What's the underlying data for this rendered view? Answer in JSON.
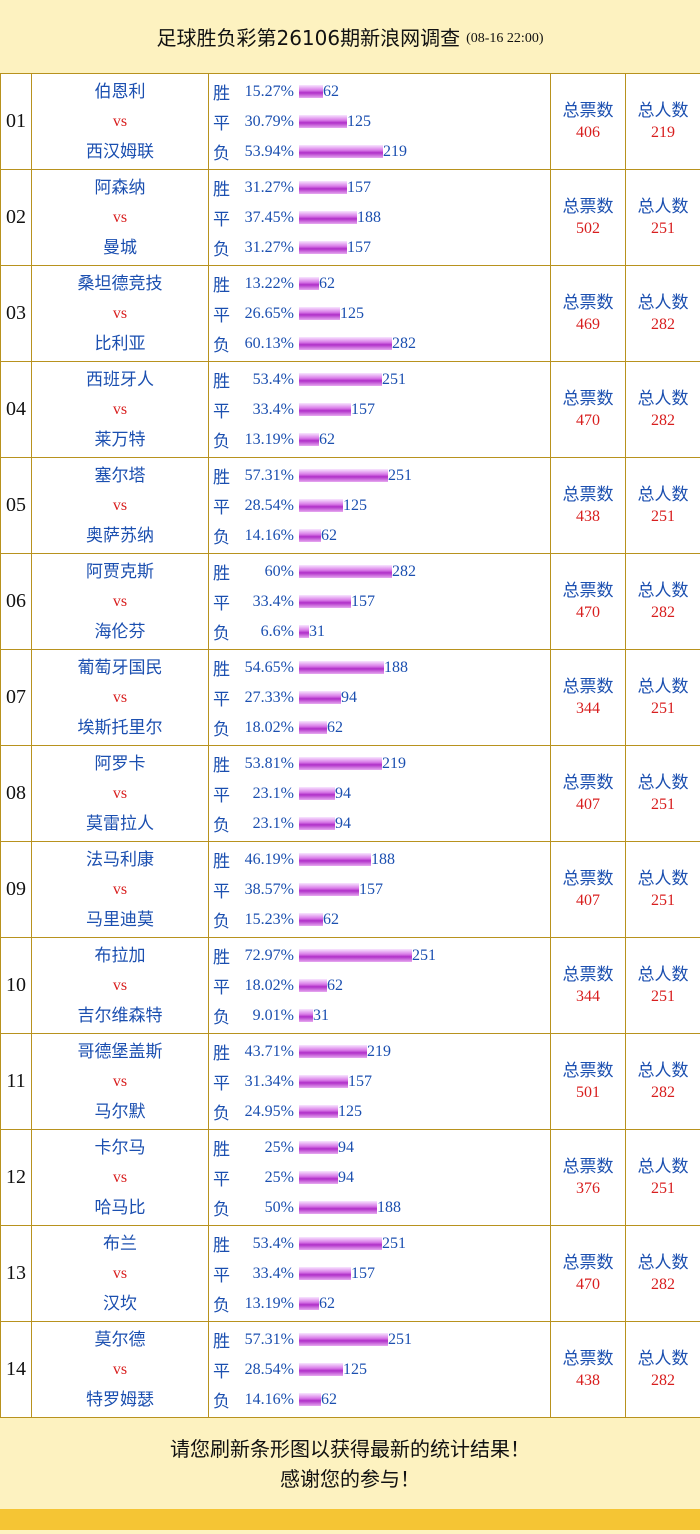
{
  "header": {
    "title": "足球胜负彩第26106期新浪网调查",
    "time": "(08-16 22:00)"
  },
  "labels": {
    "vs": "vs",
    "total_votes": "总票数",
    "total_people": "总人数"
  },
  "colors": {
    "team": "#1b4fb0",
    "vs": "#d81e1e",
    "border": "#b8921e",
    "background": "#fdf2c0",
    "bar": "#c45ad6"
  },
  "matches": [
    {
      "no": "01",
      "home": "伯恩利",
      "away": "西汉姆联",
      "options": [
        {
          "label": "胜",
          "pct": "15.27%",
          "count": "62",
          "pct_value": 15.27
        },
        {
          "label": "平",
          "pct": "30.79%",
          "count": "125",
          "pct_value": 30.79
        },
        {
          "label": "负",
          "pct": "53.94%",
          "count": "219",
          "pct_value": 53.94
        }
      ],
      "total_votes": "406",
      "total_people": "219"
    },
    {
      "no": "02",
      "home": "阿森纳",
      "away": "曼城",
      "options": [
        {
          "label": "胜",
          "pct": "31.27%",
          "count": "157",
          "pct_value": 31.27
        },
        {
          "label": "平",
          "pct": "37.45%",
          "count": "188",
          "pct_value": 37.45
        },
        {
          "label": "负",
          "pct": "31.27%",
          "count": "157",
          "pct_value": 31.27
        }
      ],
      "total_votes": "502",
      "total_people": "251"
    },
    {
      "no": "03",
      "home": "桑坦德竞技",
      "away": "比利亚",
      "options": [
        {
          "label": "胜",
          "pct": "13.22%",
          "count": "62",
          "pct_value": 13.22
        },
        {
          "label": "平",
          "pct": "26.65%",
          "count": "125",
          "pct_value": 26.65
        },
        {
          "label": "负",
          "pct": "60.13%",
          "count": "282",
          "pct_value": 60.13
        }
      ],
      "total_votes": "469",
      "total_people": "282"
    },
    {
      "no": "04",
      "home": "西班牙人",
      "away": "莱万特",
      "options": [
        {
          "label": "胜",
          "pct": "53.4%",
          "count": "251",
          "pct_value": 53.4
        },
        {
          "label": "平",
          "pct": "33.4%",
          "count": "157",
          "pct_value": 33.4
        },
        {
          "label": "负",
          "pct": "13.19%",
          "count": "62",
          "pct_value": 13.19
        }
      ],
      "total_votes": "470",
      "total_people": "282"
    },
    {
      "no": "05",
      "home": "塞尔塔",
      "away": "奥萨苏纳",
      "options": [
        {
          "label": "胜",
          "pct": "57.31%",
          "count": "251",
          "pct_value": 57.31
        },
        {
          "label": "平",
          "pct": "28.54%",
          "count": "125",
          "pct_value": 28.54
        },
        {
          "label": "负",
          "pct": "14.16%",
          "count": "62",
          "pct_value": 14.16
        }
      ],
      "total_votes": "438",
      "total_people": "251"
    },
    {
      "no": "06",
      "home": "阿贾克斯",
      "away": "海伦芬",
      "options": [
        {
          "label": "胜",
          "pct": "60%",
          "count": "282",
          "pct_value": 60
        },
        {
          "label": "平",
          "pct": "33.4%",
          "count": "157",
          "pct_value": 33.4
        },
        {
          "label": "负",
          "pct": "6.6%",
          "count": "31",
          "pct_value": 6.6
        }
      ],
      "total_votes": "470",
      "total_people": "282"
    },
    {
      "no": "07",
      "home": "葡萄牙国民",
      "away": "埃斯托里尔",
      "options": [
        {
          "label": "胜",
          "pct": "54.65%",
          "count": "188",
          "pct_value": 54.65
        },
        {
          "label": "平",
          "pct": "27.33%",
          "count": "94",
          "pct_value": 27.33
        },
        {
          "label": "负",
          "pct": "18.02%",
          "count": "62",
          "pct_value": 18.02
        }
      ],
      "total_votes": "344",
      "total_people": "251"
    },
    {
      "no": "08",
      "home": "阿罗卡",
      "away": "莫雷拉人",
      "options": [
        {
          "label": "胜",
          "pct": "53.81%",
          "count": "219",
          "pct_value": 53.81
        },
        {
          "label": "平",
          "pct": "23.1%",
          "count": "94",
          "pct_value": 23.1
        },
        {
          "label": "负",
          "pct": "23.1%",
          "count": "94",
          "pct_value": 23.1
        }
      ],
      "total_votes": "407",
      "total_people": "251"
    },
    {
      "no": "09",
      "home": "法马利康",
      "away": "马里迪莫",
      "options": [
        {
          "label": "胜",
          "pct": "46.19%",
          "count": "188",
          "pct_value": 46.19
        },
        {
          "label": "平",
          "pct": "38.57%",
          "count": "157",
          "pct_value": 38.57
        },
        {
          "label": "负",
          "pct": "15.23%",
          "count": "62",
          "pct_value": 15.23
        }
      ],
      "total_votes": "407",
      "total_people": "251"
    },
    {
      "no": "10",
      "home": "布拉加",
      "away": "吉尔维森特",
      "options": [
        {
          "label": "胜",
          "pct": "72.97%",
          "count": "251",
          "pct_value": 72.97
        },
        {
          "label": "平",
          "pct": "18.02%",
          "count": "62",
          "pct_value": 18.02
        },
        {
          "label": "负",
          "pct": "9.01%",
          "count": "31",
          "pct_value": 9.01
        }
      ],
      "total_votes": "344",
      "total_people": "251"
    },
    {
      "no": "11",
      "home": "哥德堡盖斯",
      "away": "马尔默",
      "options": [
        {
          "label": "胜",
          "pct": "43.71%",
          "count": "219",
          "pct_value": 43.71
        },
        {
          "label": "平",
          "pct": "31.34%",
          "count": "157",
          "pct_value": 31.34
        },
        {
          "label": "负",
          "pct": "24.95%",
          "count": "125",
          "pct_value": 24.95
        }
      ],
      "total_votes": "501",
      "total_people": "282"
    },
    {
      "no": "12",
      "home": "卡尔马",
      "away": "哈马比",
      "options": [
        {
          "label": "胜",
          "pct": "25%",
          "count": "94",
          "pct_value": 25
        },
        {
          "label": "平",
          "pct": "25%",
          "count": "94",
          "pct_value": 25
        },
        {
          "label": "负",
          "pct": "50%",
          "count": "188",
          "pct_value": 50
        }
      ],
      "total_votes": "376",
      "total_people": "251"
    },
    {
      "no": "13",
      "home": "布兰",
      "away": "汉坎",
      "options": [
        {
          "label": "胜",
          "pct": "53.4%",
          "count": "251",
          "pct_value": 53.4
        },
        {
          "label": "平",
          "pct": "33.4%",
          "count": "157",
          "pct_value": 33.4
        },
        {
          "label": "负",
          "pct": "13.19%",
          "count": "62",
          "pct_value": 13.19
        }
      ],
      "total_votes": "470",
      "total_people": "282"
    },
    {
      "no": "14",
      "home": "莫尔德",
      "away": "特罗姆瑟",
      "options": [
        {
          "label": "胜",
          "pct": "57.31%",
          "count": "251",
          "pct_value": 57.31
        },
        {
          "label": "平",
          "pct": "28.54%",
          "count": "125",
          "pct_value": 28.54
        },
        {
          "label": "负",
          "pct": "14.16%",
          "count": "62",
          "pct_value": 14.16
        }
      ],
      "total_votes": "438",
      "total_people": "282"
    }
  ],
  "footer": {
    "line1": "请您刷新条形图以获得最新的统计结果！",
    "line2": "感谢您的参与！"
  }
}
